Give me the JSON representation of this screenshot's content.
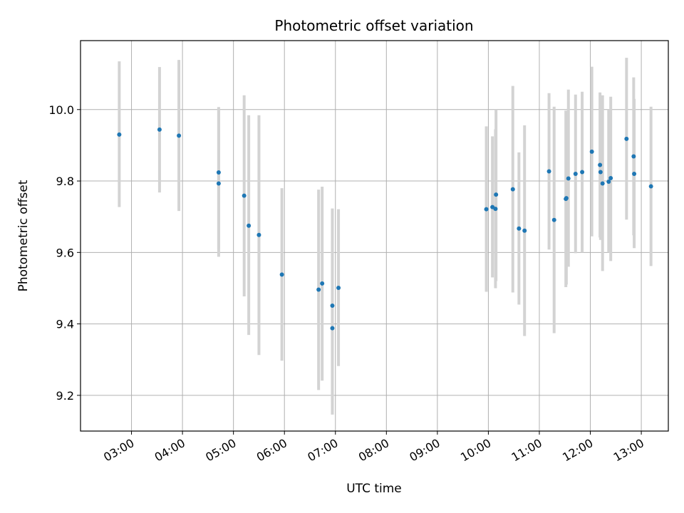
{
  "chart_data": {
    "type": "scatter",
    "title": "Photometric offset variation",
    "xlabel": "UTC time",
    "ylabel": "Photometric offset",
    "x_unit": "hours UTC",
    "xlim": [
      2.0,
      13.53
    ],
    "ylim": [
      9.1,
      10.193
    ],
    "x_ticks": [
      {
        "value": 3,
        "label": "03:00"
      },
      {
        "value": 4,
        "label": "04:00"
      },
      {
        "value": 5,
        "label": "05:00"
      },
      {
        "value": 6,
        "label": "06:00"
      },
      {
        "value": 7,
        "label": "07:00"
      },
      {
        "value": 8,
        "label": "08:00"
      },
      {
        "value": 9,
        "label": "09:00"
      },
      {
        "value": 10,
        "label": "10:00"
      },
      {
        "value": 11,
        "label": "11:00"
      },
      {
        "value": 12,
        "label": "12:00"
      },
      {
        "value": 13,
        "label": "13:00"
      }
    ],
    "y_ticks": [
      {
        "value": 9.2,
        "label": "9.2"
      },
      {
        "value": 9.4,
        "label": "9.4"
      },
      {
        "value": 9.6,
        "label": "9.6"
      },
      {
        "value": 9.8,
        "label": "9.8"
      },
      {
        "value": 10.0,
        "label": "10.0"
      }
    ],
    "grid": true,
    "marker_color": "#1f77b4",
    "errorbar_color": "#d3d3d3",
    "points": [
      {
        "x": 2.76,
        "y": 9.93,
        "ylow": 9.727,
        "yhigh": 10.135
      },
      {
        "x": 3.55,
        "y": 9.944,
        "ylow": 9.768,
        "yhigh": 10.119
      },
      {
        "x": 3.93,
        "y": 9.927,
        "ylow": 9.716,
        "yhigh": 10.139
      },
      {
        "x": 4.71,
        "y": 9.824,
        "ylow": 9.611,
        "yhigh": 10.007
      },
      {
        "x": 4.71,
        "y": 9.793,
        "ylow": 9.588,
        "yhigh": 9.997
      },
      {
        "x": 5.21,
        "y": 9.759,
        "ylow": 9.477,
        "yhigh": 10.04
      },
      {
        "x": 5.3,
        "y": 9.675,
        "ylow": 9.369,
        "yhigh": 9.984
      },
      {
        "x": 5.5,
        "y": 9.649,
        "ylow": 9.313,
        "yhigh": 9.984
      },
      {
        "x": 5.95,
        "y": 9.538,
        "ylow": 9.297,
        "yhigh": 9.78
      },
      {
        "x": 6.67,
        "y": 9.496,
        "ylow": 9.215,
        "yhigh": 9.776
      },
      {
        "x": 6.74,
        "y": 9.513,
        "ylow": 9.241,
        "yhigh": 9.784
      },
      {
        "x": 6.94,
        "y": 9.451,
        "ylow": 9.182,
        "yhigh": 9.723
      },
      {
        "x": 6.94,
        "y": 9.388,
        "ylow": 9.146,
        "yhigh": 9.633
      },
      {
        "x": 7.06,
        "y": 9.501,
        "ylow": 9.282,
        "yhigh": 9.721
      },
      {
        "x": 9.96,
        "y": 9.721,
        "ylow": 9.49,
        "yhigh": 9.953
      },
      {
        "x": 10.08,
        "y": 9.727,
        "ylow": 9.53,
        "yhigh": 9.925
      },
      {
        "x": 10.14,
        "y": 9.722,
        "ylow": 9.5,
        "yhigh": 9.945
      },
      {
        "x": 10.15,
        "y": 9.762,
        "ylow": 9.52,
        "yhigh": 10.0
      },
      {
        "x": 10.48,
        "y": 9.777,
        "ylow": 9.488,
        "yhigh": 10.066
      },
      {
        "x": 10.6,
        "y": 9.667,
        "ylow": 9.454,
        "yhigh": 9.88
      },
      {
        "x": 10.71,
        "y": 9.661,
        "ylow": 9.366,
        "yhigh": 9.956
      },
      {
        "x": 11.19,
        "y": 9.827,
        "ylow": 9.608,
        "yhigh": 10.046
      },
      {
        "x": 11.29,
        "y": 9.691,
        "ylow": 9.374,
        "yhigh": 10.008
      },
      {
        "x": 11.52,
        "y": 9.75,
        "ylow": 9.503,
        "yhigh": 9.997
      },
      {
        "x": 11.53,
        "y": 9.752,
        "ylow": 9.51,
        "yhigh": 9.995
      },
      {
        "x": 11.57,
        "y": 9.807,
        "ylow": 9.56,
        "yhigh": 10.056
      },
      {
        "x": 11.71,
        "y": 9.82,
        "ylow": 9.598,
        "yhigh": 10.042
      },
      {
        "x": 11.84,
        "y": 9.825,
        "ylow": 9.6,
        "yhigh": 10.05
      },
      {
        "x": 12.03,
        "y": 9.882,
        "ylow": 9.645,
        "yhigh": 10.12
      },
      {
        "x": 12.19,
        "y": 9.845,
        "ylow": 9.642,
        "yhigh": 10.048
      },
      {
        "x": 12.2,
        "y": 9.825,
        "ylow": 9.635,
        "yhigh": 10.015
      },
      {
        "x": 12.24,
        "y": 9.793,
        "ylow": 9.548,
        "yhigh": 10.04
      },
      {
        "x": 12.36,
        "y": 9.798,
        "ylow": 9.6,
        "yhigh": 10.0
      },
      {
        "x": 12.4,
        "y": 9.808,
        "ylow": 9.576,
        "yhigh": 10.036
      },
      {
        "x": 12.71,
        "y": 9.918,
        "ylow": 9.692,
        "yhigh": 10.145
      },
      {
        "x": 12.85,
        "y": 9.869,
        "ylow": 9.648,
        "yhigh": 10.09
      },
      {
        "x": 12.86,
        "y": 9.82,
        "ylow": 9.612,
        "yhigh": 10.03
      },
      {
        "x": 13.19,
        "y": 9.785,
        "ylow": 9.562,
        "yhigh": 10.008
      }
    ]
  }
}
